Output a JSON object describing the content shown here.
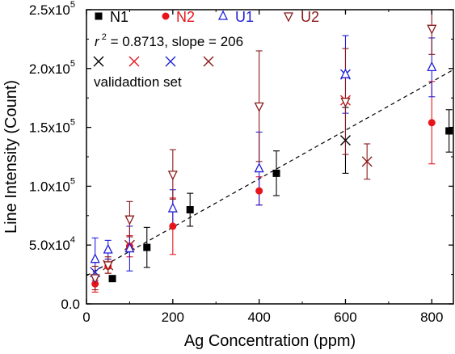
{
  "chart_data": {
    "type": "scatter",
    "xlabel": "Ag Concentration (ppm)",
    "ylabel": "Line Intensity (Count)",
    "xlim": [
      0,
      850
    ],
    "ylim": [
      0,
      250000
    ],
    "x_ticks": [
      0,
      200,
      400,
      600,
      800
    ],
    "x_tick_labels": [
      "0",
      "200",
      "400",
      "600",
      "800"
    ],
    "y_ticks": [
      0,
      50000,
      100000,
      150000,
      200000,
      250000
    ],
    "y_tick_labels": [
      {
        "mantissa": "0.0",
        "exponent": ""
      },
      {
        "mantissa": "5.0x10",
        "exponent": "4"
      },
      {
        "mantissa": "1.0x10",
        "exponent": "5"
      },
      {
        "mantissa": "1.5x10",
        "exponent": "5"
      },
      {
        "mantissa": "2.0x10",
        "exponent": "5"
      },
      {
        "mantissa": "2.5x10",
        "exponent": "5"
      }
    ],
    "series": [
      {
        "name": "N1",
        "color": "#000000",
        "marker": "filled-square",
        "points": [
          {
            "x": 60,
            "y": 21500,
            "err": 0
          },
          {
            "x": 140,
            "y": 48000,
            "err": 17000
          },
          {
            "x": 240,
            "y": 80000,
            "err": 14000
          },
          {
            "x": 440,
            "y": 111000,
            "err": 19000
          },
          {
            "x": 840,
            "y": 147000,
            "err": 18000
          }
        ]
      },
      {
        "name": "N2",
        "color": "#e8141c",
        "marker": "filled-circle",
        "points": [
          {
            "x": 20,
            "y": 17000,
            "err": 7000
          },
          {
            "x": 50,
            "y": 32000,
            "err": 6000
          },
          {
            "x": 100,
            "y": 49000,
            "err": 9000
          },
          {
            "x": 200,
            "y": 66000,
            "err": 24000
          },
          {
            "x": 400,
            "y": 96000,
            "err": 12000
          },
          {
            "x": 800,
            "y": 154000,
            "err": 35000
          }
        ]
      },
      {
        "name": "U1",
        "color": "#2020d8",
        "marker": "open-triangle-up",
        "points": [
          {
            "x": 20,
            "y": 38000,
            "err": 18000
          },
          {
            "x": 50,
            "y": 46000,
            "err": 8000
          },
          {
            "x": 100,
            "y": 47000,
            "err": 19000
          },
          {
            "x": 200,
            "y": 81000,
            "err": 16000
          },
          {
            "x": 400,
            "y": 115000,
            "err": 31000
          },
          {
            "x": 600,
            "y": 195000,
            "err": 33000
          },
          {
            "x": 800,
            "y": 201000,
            "err": 25000
          }
        ]
      },
      {
        "name": "U2",
        "color": "#8b1a1a",
        "marker": "open-triangle-down",
        "points": [
          {
            "x": 20,
            "y": 22000,
            "err": 10000
          },
          {
            "x": 50,
            "y": 33000,
            "err": 7000
          },
          {
            "x": 100,
            "y": 72000,
            "err": 15000
          },
          {
            "x": 200,
            "y": 110000,
            "err": 21000
          },
          {
            "x": 400,
            "y": 168000,
            "err": 47000
          },
          {
            "x": 600,
            "y": 172000,
            "err": 45000
          },
          {
            "x": 800,
            "y": 234000,
            "err": 22000
          }
        ]
      }
    ],
    "validation_set": {
      "label": "validadtion set",
      "colors": [
        "#000000",
        "#e8141c",
        "#2020d8",
        "#8b1a1a"
      ],
      "points": [
        {
          "x": 600,
          "y": 139000,
          "err": 28000,
          "color": "#000000"
        },
        {
          "x": 650,
          "y": 121000,
          "err": 15000,
          "color": "#8b1a1a"
        },
        {
          "x": 600,
          "y": 173000,
          "err": 0,
          "color": "#e8141c"
        },
        {
          "x": 600,
          "y": 195000,
          "err": 0,
          "color": "#2020d8"
        },
        {
          "x": 20,
          "y": 27000,
          "err": 0,
          "color": "#2020d8"
        },
        {
          "x": 50,
          "y": 33000,
          "err": 0,
          "color": "#8b1a1a"
        },
        {
          "x": 100,
          "y": 50000,
          "err": 0,
          "color": "#8b1a1a"
        }
      ]
    },
    "fit_line": {
      "style": "dashed",
      "color": "#000000",
      "points": [
        {
          "x": 0,
          "y": 24000
        },
        {
          "x": 850,
          "y": 199000
        }
      ]
    },
    "annotation": {
      "r_label": "r",
      "r_exp": "2",
      "text": " = 0.8713, slope = 206"
    },
    "legend": {
      "placement": "top-left"
    }
  }
}
